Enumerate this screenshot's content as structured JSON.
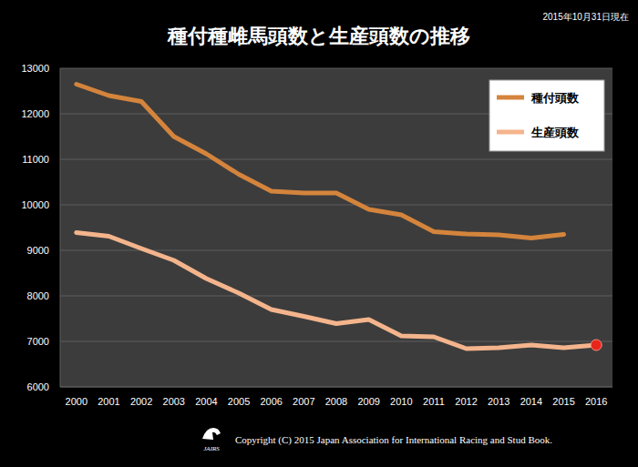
{
  "chart_data": {
    "type": "line",
    "title": "種付種雌馬頭数と生産頭数の推移",
    "subtitle": "2015年10月31日現在",
    "source": "Copyright (C) 2015 Japan Association for International Racing and Stud Book.",
    "logo": "JAIRS",
    "categories": [
      "2000",
      "2001",
      "2002",
      "2003",
      "2004",
      "2005",
      "2006",
      "2007",
      "2008",
      "2009",
      "2010",
      "2011",
      "2012",
      "2013",
      "2014",
      "2015",
      "2016"
    ],
    "series": [
      {
        "name": "種付頭数",
        "color": "#d4843c",
        "values": [
          12650,
          12400,
          12270,
          11500,
          11120,
          10670,
          10300,
          10260,
          10260,
          9900,
          9780,
          9410,
          9360,
          9340,
          9270,
          9350,
          null
        ]
      },
      {
        "name": "生産頭数",
        "color": "#f4b48c",
        "marker": "last",
        "values": [
          9390,
          9310,
          9040,
          8780,
          8380,
          8060,
          7700,
          7550,
          7390,
          7480,
          7120,
          7100,
          6840,
          6860,
          6920,
          6860,
          6920
        ]
      }
    ],
    "ylim": [
      6000,
      13000
    ],
    "yticks": [
      6000,
      7000,
      8000,
      9000,
      10000,
      11000,
      12000,
      13000
    ],
    "grid": true,
    "legend": "upper right"
  }
}
